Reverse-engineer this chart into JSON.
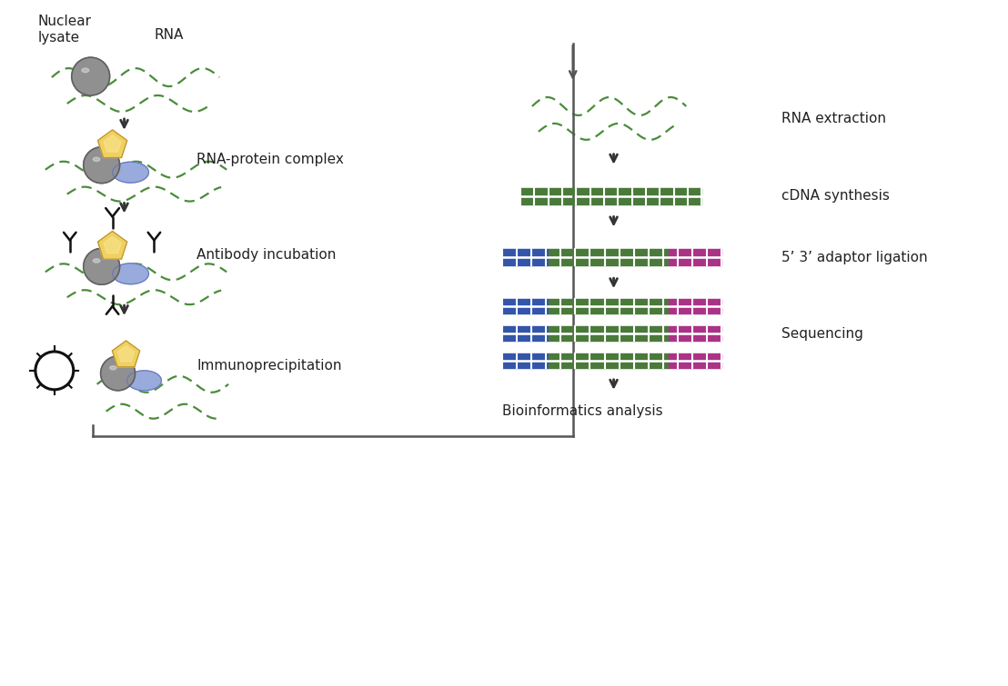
{
  "background_color": "#ffffff",
  "labels": {
    "nuclear_lysate": "Nuclear\nlysate",
    "rna": "RNA",
    "rna_protein_complex": "RNA-protein complex",
    "antibody_incubation": "Antibody incubation",
    "immunoprecipitation": "Immunoprecipitation",
    "rna_extraction": "RNA extraction",
    "cdna_synthesis": "cDNA synthesis",
    "adaptor_ligation": "5’ 3’ adaptor ligation",
    "sequencing": "Sequencing",
    "bioinformatics": "Bioinformatics analysis"
  },
  "colors": {
    "gray_sphere": "#909090",
    "gray_sphere_dark": "#606060",
    "blue_ellipse": "#99aadd",
    "yellow_pentagon": "#f0d060",
    "yellow_pentagon_dark": "#c8a830",
    "green_rna": "#4a8c3a",
    "green_dna": "#4a7a3a",
    "blue_dna": "#3355aa",
    "purple_dna": "#aa3388",
    "arrow_color": "#333333",
    "connector_color": "#555555",
    "text_color": "#222222",
    "white": "#ffffff"
  },
  "fontsize": 11
}
